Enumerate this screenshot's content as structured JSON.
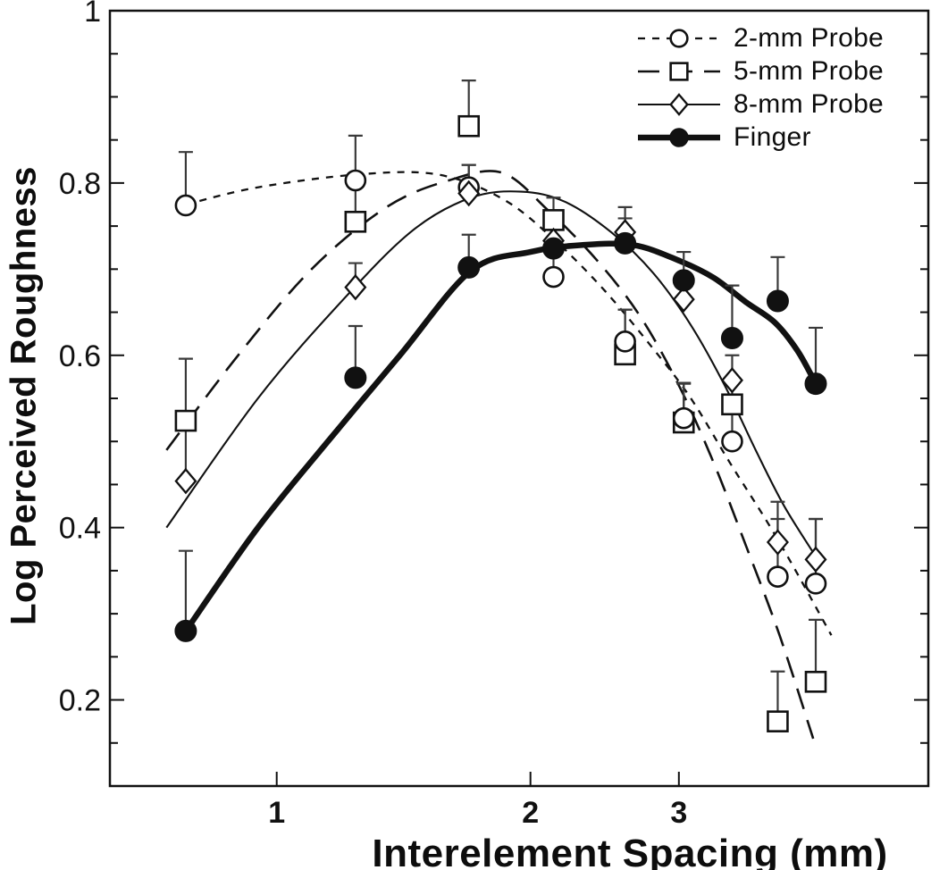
{
  "figure": {
    "background": "#ffffff",
    "ink_color": "#111111",
    "error_bar_color": "#3a3a3a"
  },
  "chart_data": {
    "type": "scatter",
    "title": "",
    "xlabel": "Interelement Spacing (mm)",
    "ylabel": "Log Perceived Roughness",
    "x_scale": "log",
    "grid": "off",
    "axes": {
      "x_min": 0.634,
      "x_max": 5.93,
      "y_min": 0.1,
      "y_max": 1.0
    },
    "x_ticks": [
      {
        "value": 1,
        "label": "1"
      },
      {
        "value": 2,
        "label": "2"
      },
      {
        "value": 3,
        "label": "3"
      }
    ],
    "y_ticks": [
      {
        "value": 1.0,
        "label": "1"
      },
      {
        "value": 0.8,
        "label": "0.8"
      },
      {
        "value": 0.6,
        "label": "0.6"
      },
      {
        "value": 0.4,
        "label": "0.4"
      },
      {
        "value": 0.2,
        "label": "0.2"
      }
    ],
    "y_minor_tick_step": 0.05,
    "legend": {
      "position": "top-right"
    },
    "point_format": "[spacing_mm, log_perceived_roughness, error_up]",
    "series": [
      {
        "id": "probe-2mm",
        "name": "2-mm Probe",
        "marker": "open-circle",
        "line_style": "short-dash",
        "points": [
          [
            0.78,
            0.774,
            0.062
          ],
          [
            1.24,
            0.803,
            0.052
          ],
          [
            1.69,
            0.795,
            0.026
          ],
          [
            2.13,
            0.691,
            0.031
          ],
          [
            2.59,
            0.616,
            0.037
          ],
          [
            3.04,
            0.527,
            0.041
          ],
          [
            3.47,
            0.5,
            0.043
          ],
          [
            3.93,
            0.343,
            0.067
          ],
          [
            4.36,
            0.335,
            0.075
          ]
        ],
        "fit_curve": [
          [
            0.78,
            0.775
          ],
          [
            0.95,
            0.795
          ],
          [
            1.25,
            0.81
          ],
          [
            1.55,
            0.81
          ],
          [
            1.85,
            0.782
          ],
          [
            2.13,
            0.735
          ],
          [
            2.45,
            0.675
          ],
          [
            2.8,
            0.607
          ],
          [
            3.1,
            0.55
          ],
          [
            3.45,
            0.475
          ],
          [
            3.8,
            0.41
          ],
          [
            4.1,
            0.355
          ],
          [
            4.55,
            0.275
          ]
        ]
      },
      {
        "id": "probe-5mm",
        "name": "5-mm Probe",
        "marker": "open-square",
        "line_style": "long-dash",
        "points": [
          [
            0.78,
            0.524,
            0.072
          ],
          [
            1.24,
            0.755,
            0.048
          ],
          [
            1.69,
            0.866,
            0.053
          ],
          [
            2.13,
            0.757,
            0.026
          ],
          [
            2.59,
            0.601,
            0.052
          ],
          [
            3.04,
            0.522,
            0.045
          ],
          [
            3.47,
            0.543,
            0.028
          ],
          [
            3.93,
            0.175,
            0.058
          ],
          [
            4.36,
            0.221,
            0.072
          ]
        ],
        "fit_curve": [
          [
            0.74,
            0.49
          ],
          [
            0.9,
            0.6
          ],
          [
            1.1,
            0.7
          ],
          [
            1.35,
            0.772
          ],
          [
            1.6,
            0.803
          ],
          [
            1.85,
            0.812
          ],
          [
            2.1,
            0.768
          ],
          [
            2.4,
            0.71
          ],
          [
            2.7,
            0.645
          ],
          [
            3.0,
            0.565
          ],
          [
            3.3,
            0.475
          ],
          [
            3.6,
            0.38
          ],
          [
            3.95,
            0.275
          ],
          [
            4.33,
            0.155
          ]
        ]
      },
      {
        "id": "probe-8mm",
        "name": "8-mm Probe",
        "marker": "open-diamond",
        "line_style": "solid-thin",
        "points": [
          [
            0.78,
            0.454,
            0.066
          ],
          [
            1.24,
            0.679,
            0.028
          ],
          [
            1.69,
            0.788,
            0.033
          ],
          [
            2.13,
            0.733,
            0
          ],
          [
            2.59,
            0.743,
            0.029
          ],
          [
            3.04,
            0.665,
            0.03
          ],
          [
            3.47,
            0.571,
            0.029
          ],
          [
            3.93,
            0.383,
            0.047
          ],
          [
            4.36,
            0.363,
            0.047
          ]
        ],
        "fit_curve": [
          [
            0.74,
            0.4
          ],
          [
            0.95,
            0.55
          ],
          [
            1.2,
            0.665
          ],
          [
            1.45,
            0.745
          ],
          [
            1.7,
            0.783
          ],
          [
            1.95,
            0.79
          ],
          [
            2.2,
            0.778
          ],
          [
            2.5,
            0.742
          ],
          [
            2.8,
            0.695
          ],
          [
            3.1,
            0.635
          ],
          [
            3.4,
            0.565
          ],
          [
            3.7,
            0.49
          ],
          [
            4.0,
            0.425
          ],
          [
            4.37,
            0.365
          ]
        ]
      },
      {
        "id": "finger",
        "name": "Finger",
        "marker": "filled-circle",
        "line_style": "solid-thick",
        "points": [
          [
            0.78,
            0.28,
            0.093
          ],
          [
            1.24,
            0.574,
            0.06
          ],
          [
            1.69,
            0.702,
            0.038
          ],
          [
            2.13,
            0.724,
            0
          ],
          [
            2.59,
            0.73,
            0.029
          ],
          [
            3.04,
            0.687,
            0.033
          ],
          [
            3.47,
            0.62,
            0.061
          ],
          [
            3.93,
            0.663,
            0.051
          ],
          [
            4.36,
            0.567,
            0.065
          ]
        ],
        "fit_curve": [
          [
            0.78,
            0.28
          ],
          [
            0.95,
            0.4
          ],
          [
            1.15,
            0.5
          ],
          [
            1.4,
            0.6
          ],
          [
            1.7,
            0.698
          ],
          [
            2.0,
            0.72
          ],
          [
            2.3,
            0.728
          ],
          [
            2.65,
            0.728
          ],
          [
            3.0,
            0.71
          ],
          [
            3.3,
            0.69
          ],
          [
            3.6,
            0.662
          ],
          [
            3.9,
            0.638
          ],
          [
            4.15,
            0.605
          ],
          [
            4.36,
            0.567
          ]
        ]
      }
    ]
  }
}
